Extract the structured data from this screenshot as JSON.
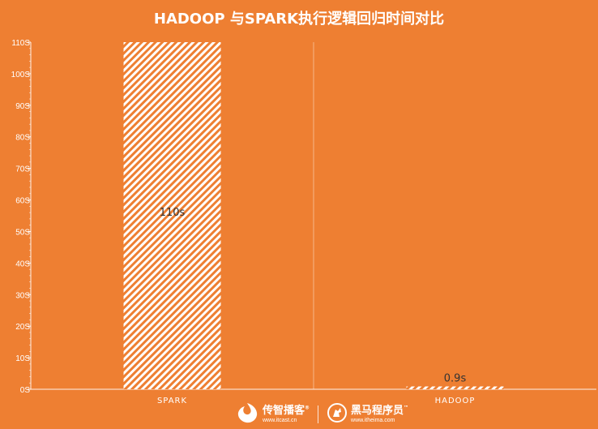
{
  "chart_data": {
    "type": "bar",
    "title": "HADOOP 与SPARK执行逻辑回归时间对比",
    "categories": [
      "SPARK",
      "HADOOP"
    ],
    "values": [
      110,
      0.9
    ],
    "data_labels": [
      "110s",
      "0.9s"
    ],
    "ylim": [
      0,
      110
    ],
    "y_ticks": [
      "0S",
      "10S",
      "20S",
      "30S",
      "40S",
      "50S",
      "60S",
      "70S",
      "80S",
      "90S",
      "100S",
      "110S"
    ],
    "grid": false,
    "bar_fill": "white-diagonal-hatch"
  },
  "colors": {
    "background": "#ee7f32",
    "bar_stripe": "#ffffff",
    "text": "#ffffff",
    "data_label": "#333333"
  },
  "footer": {
    "logo1": {
      "name": "传智播客",
      "trademark": "®",
      "url": "www.itcast.cn",
      "icon": "itcast-flame-icon"
    },
    "logo2": {
      "name": "黑马程序员",
      "trademark": "™",
      "url": "www.itheima.com",
      "icon": "itheima-horse-icon"
    }
  }
}
